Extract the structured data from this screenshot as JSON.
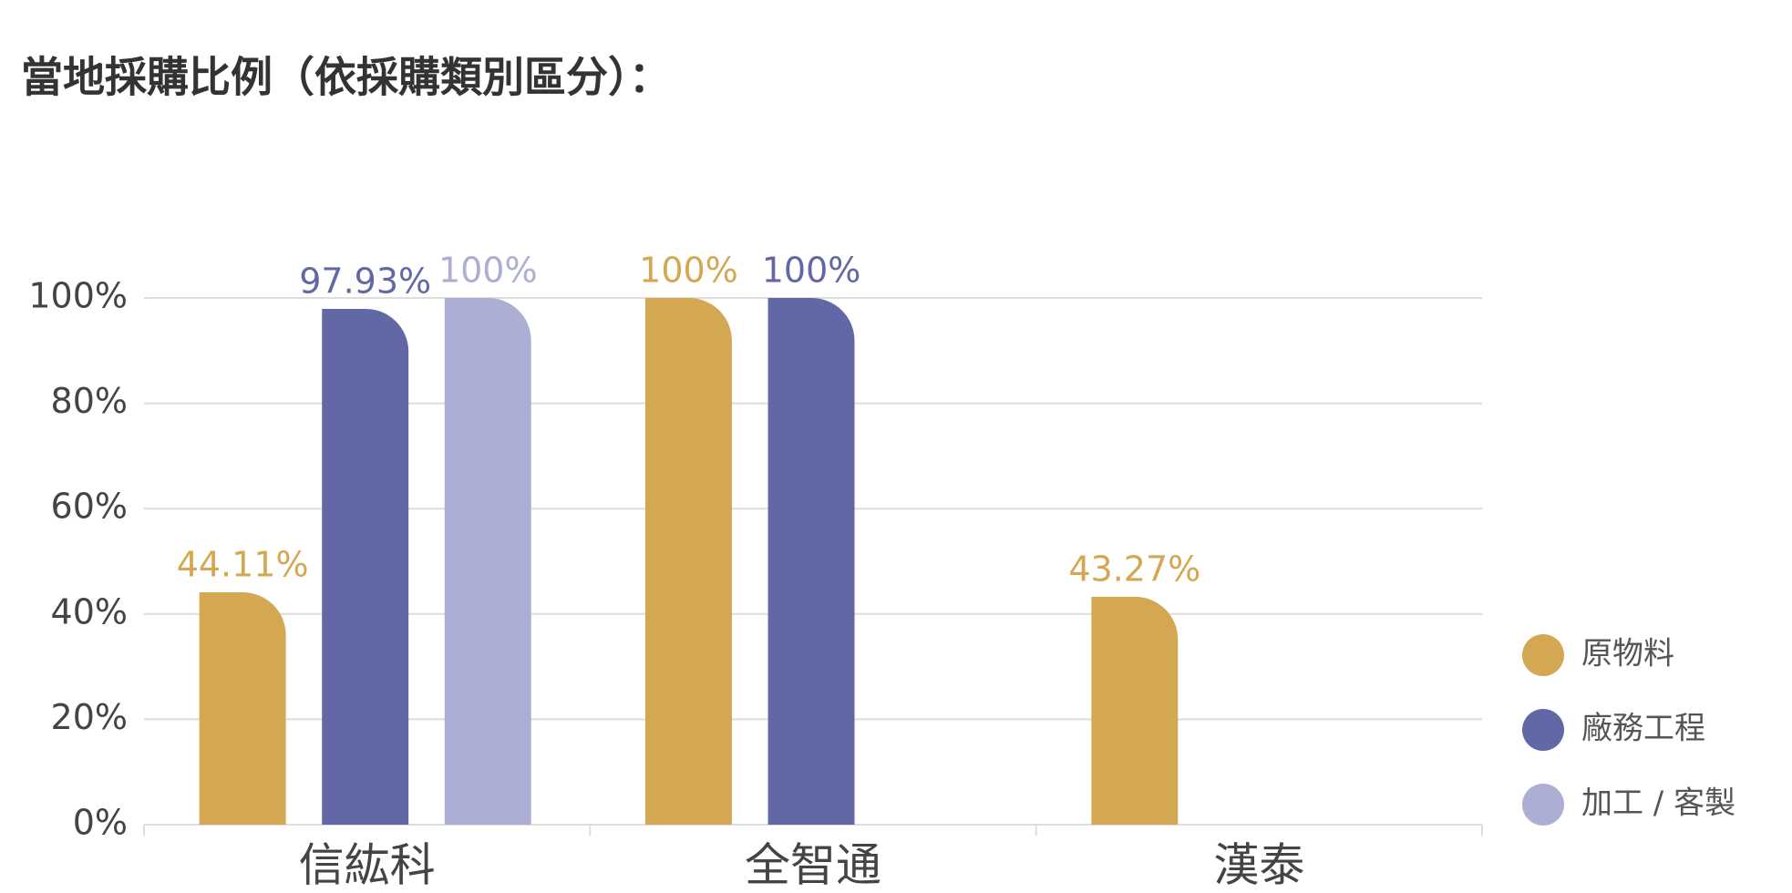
{
  "chart_data": {
    "type": "bar",
    "title": "當地採購比例（依採購類別區分）：",
    "categories": [
      "信紘科",
      "全智通",
      "漢泰"
    ],
    "series": [
      {
        "name": "原物料",
        "color": "#d4a853",
        "values": [
          44.11,
          100,
          43.27
        ],
        "value_labels": [
          "44.11%",
          "100%",
          "43.27%"
        ]
      },
      {
        "name": "廠務工程",
        "color": "#6268a6",
        "values": [
          97.93,
          100,
          null
        ],
        "value_labels": [
          "97.93%",
          "100%",
          null
        ]
      },
      {
        "name": "加工 / 客製",
        "color": "#adaed4",
        "values": [
          100,
          null,
          null
        ],
        "value_labels": [
          "100%",
          null,
          null
        ]
      }
    ],
    "ylim": [
      0,
      100
    ],
    "yticks": [
      {
        "value": 0,
        "label": "0%"
      },
      {
        "value": 20,
        "label": "20%"
      },
      {
        "value": 40,
        "label": "40%"
      },
      {
        "value": 60,
        "label": "60%"
      },
      {
        "value": 80,
        "label": "80%"
      },
      {
        "value": 100,
        "label": "100%"
      }
    ],
    "grid": true,
    "legend": "right"
  }
}
